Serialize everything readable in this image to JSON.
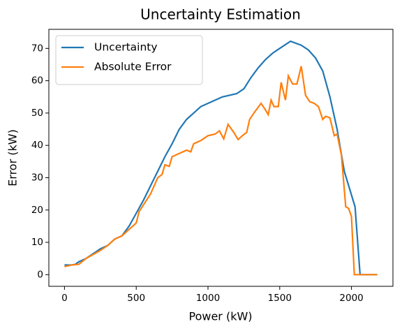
{
  "chart_data": {
    "type": "line",
    "title": "Uncertainty Estimation",
    "xlabel": "Power (kW)",
    "ylabel": "Error (kW)",
    "xlim": [
      -109,
      2289
    ],
    "ylim": [
      -3.6,
      75.9
    ],
    "xticks": [
      0,
      500,
      1000,
      1500,
      2000
    ],
    "yticks": [
      0,
      10,
      20,
      30,
      40,
      50,
      60,
      70
    ],
    "legend": "upper left",
    "grid": false,
    "series": [
      {
        "name": "Uncertainty",
        "color": "#1f77b4",
        "x": [
          0,
          50,
          75,
          100,
          150,
          200,
          250,
          300,
          350,
          400,
          450,
          500,
          550,
          600,
          650,
          700,
          750,
          800,
          850,
          900,
          950,
          1000,
          1050,
          1100,
          1150,
          1200,
          1250,
          1300,
          1350,
          1400,
          1450,
          1500,
          1575,
          1650,
          1700,
          1750,
          1800,
          1850,
          1900,
          1950,
          2025,
          2060,
          2180
        ],
        "values": [
          3,
          3,
          3.2,
          4,
          5,
          6.5,
          8,
          9,
          11,
          12,
          15,
          19,
          23,
          27.5,
          32,
          36.5,
          40.5,
          45,
          48,
          50,
          52,
          53,
          54,
          55,
          55.5,
          56,
          57.5,
          61,
          64,
          66.5,
          68.5,
          70,
          72.2,
          71,
          69.5,
          67,
          63,
          55,
          45,
          32,
          21,
          0,
          0
        ]
      },
      {
        "name": "Absolute Error",
        "color": "#ff7f0e",
        "x": [
          0,
          50,
          100,
          150,
          250,
          300,
          350,
          400,
          450,
          500,
          520,
          600,
          650,
          680,
          700,
          730,
          750,
          800,
          850,
          880,
          900,
          950,
          1000,
          1050,
          1080,
          1110,
          1140,
          1180,
          1210,
          1240,
          1270,
          1290,
          1320,
          1370,
          1400,
          1420,
          1440,
          1460,
          1490,
          1510,
          1540,
          1560,
          1590,
          1620,
          1650,
          1680,
          1710,
          1740,
          1770,
          1800,
          1820,
          1850,
          1880,
          1900,
          1930,
          1960,
          1980,
          2000,
          2020,
          2180
        ],
        "values": [
          2.5,
          3,
          3.2,
          5,
          7.5,
          9,
          11,
          12,
          14,
          16,
          19.5,
          25,
          30,
          31,
          34,
          33.5,
          36.5,
          37.5,
          38.5,
          38,
          40.5,
          41.5,
          43,
          43.5,
          44.5,
          42,
          46.5,
          44,
          41.8,
          43,
          44,
          48,
          50,
          53,
          51,
          49.5,
          54,
          52,
          52,
          59.5,
          54,
          61.5,
          59,
          59,
          64.5,
          55.5,
          53.5,
          53,
          52,
          48,
          49,
          48.5,
          43,
          43.5,
          37,
          21,
          20.5,
          18,
          0,
          0
        ]
      }
    ]
  }
}
